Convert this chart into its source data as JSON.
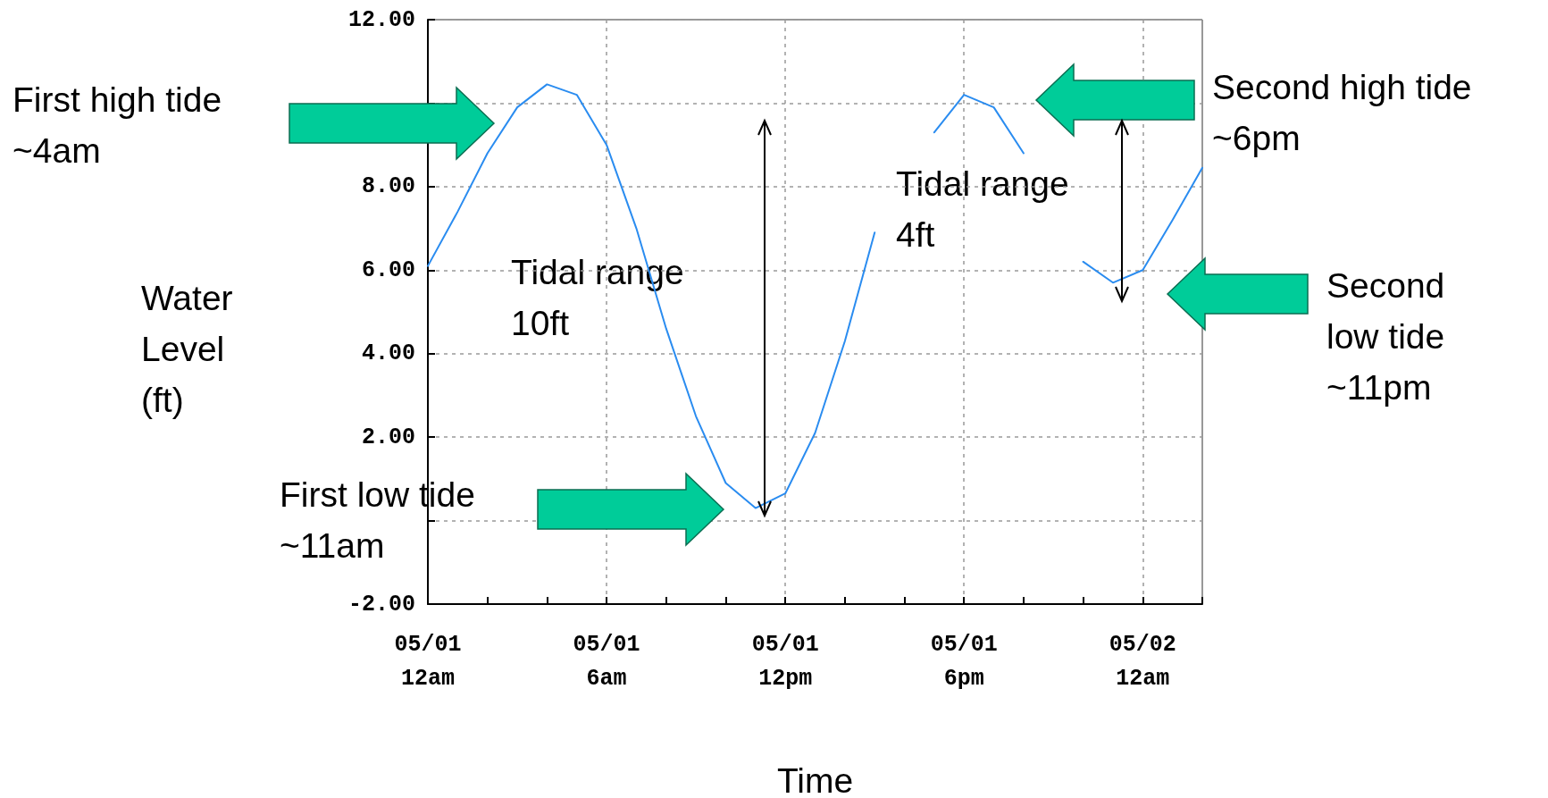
{
  "chart_data": {
    "type": "line",
    "xlabel": "Time",
    "ylabel": "Water\nLevel\n(ft)",
    "categories": [
      "05/01\n12am",
      null,
      null,
      null,
      null,
      null,
      "05/01\n6am",
      null,
      null,
      null,
      null,
      null,
      "05/01\n12pm",
      null,
      null,
      null,
      null,
      null,
      "05/01\n6pm",
      null,
      null,
      null,
      null,
      null,
      "05/02\n12am",
      null,
      null
    ],
    "series": [
      {
        "color": "#2a8cf0",
        "values": [
          6.1,
          7.4,
          8.8,
          9.9,
          10.45,
          10.2,
          9.0,
          7.0,
          4.6,
          2.5,
          0.9,
          0.3,
          0.65,
          2.1,
          4.3,
          6.9,
          null,
          9.3,
          10.2,
          9.9,
          8.8,
          null,
          6.2,
          5.7,
          6.0,
          7.2,
          8.45
        ]
      }
    ],
    "ylim": [
      -2,
      12
    ],
    "yticks": [
      {
        "value": -2,
        "label": "-2.00"
      },
      {
        "value": 0,
        "label": null
      },
      {
        "value": 2,
        "label": "2.00"
      },
      {
        "value": 4,
        "label": "4.00"
      },
      {
        "value": 6,
        "label": "6.00"
      },
      {
        "value": 8,
        "label": "8.00"
      },
      {
        "value": 10,
        "label": null
      },
      {
        "value": 12,
        "label": "12.00"
      }
    ],
    "grid": true,
    "annotations": [
      "First high tide\n~4am",
      "First low tide\n~11am",
      "Second high tide\n~6pm",
      "Second\nlow tide\n~11pm",
      "Tidal range\n10ft",
      "Tidal range\n4ft"
    ]
  }
}
